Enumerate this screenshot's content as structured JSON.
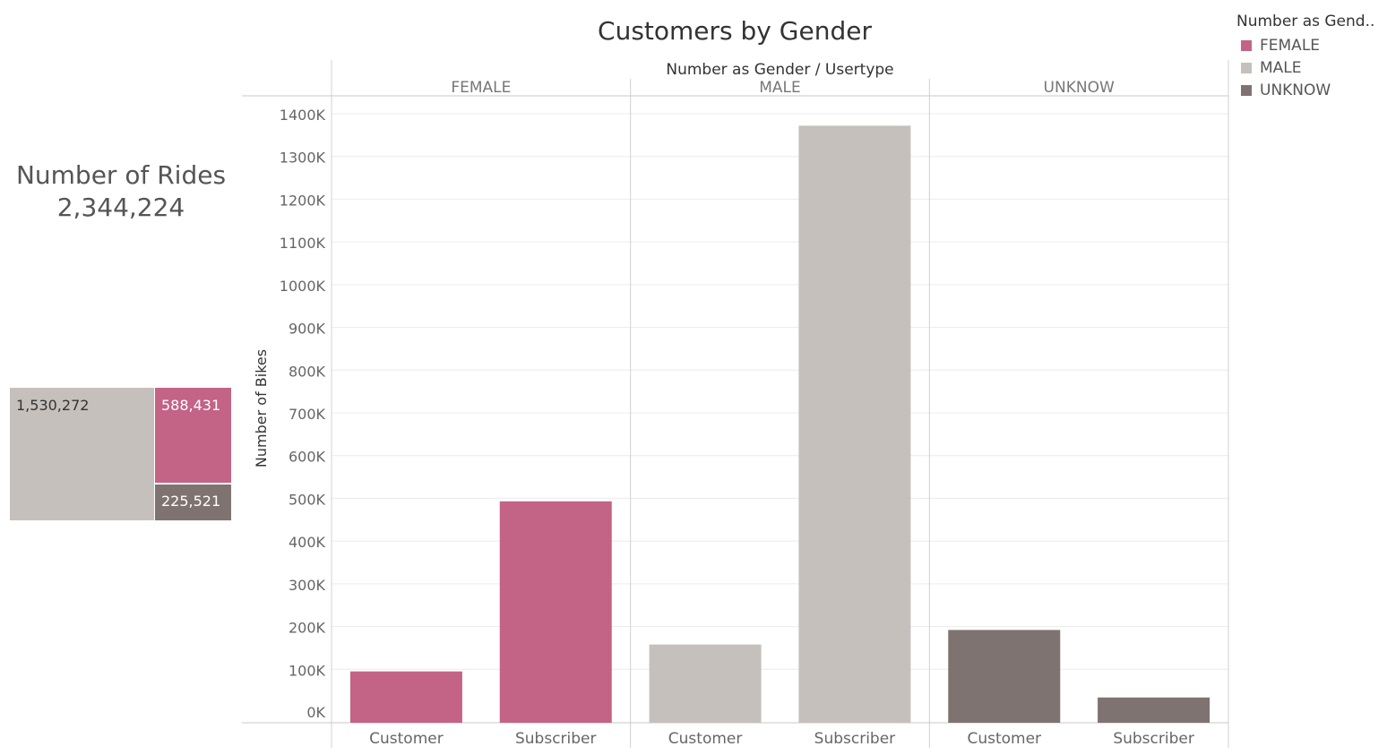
{
  "kpi": {
    "label": "Number of Rides",
    "value": "2,344,224"
  },
  "treemap": {
    "male": "1,530,272",
    "female": "588,431",
    "unknow": "225,521"
  },
  "legend": {
    "title": "Number as Gend..",
    "items": [
      {
        "label": "FEMALE",
        "color": "#c36386"
      },
      {
        "label": "MALE",
        "color": "#c5c0bc"
      },
      {
        "label": "UNKNOW",
        "color": "#7e7370"
      }
    ]
  },
  "chart_data": {
    "type": "bar",
    "title": "Customers by Gender",
    "column_header": "Number as Gender  /  Usertype",
    "ylabel": "Number of Bikes",
    "ylim": [
      0,
      1400000
    ],
    "yticks": [
      0,
      100000,
      200000,
      300000,
      400000,
      500000,
      600000,
      700000,
      800000,
      900000,
      1000000,
      1100000,
      1200000,
      1300000,
      1400000
    ],
    "ytick_labels": [
      "0K",
      "100K",
      "200K",
      "300K",
      "400K",
      "500K",
      "600K",
      "700K",
      "800K",
      "900K",
      "1000K",
      "1100K",
      "1200K",
      "1300K",
      "1400K"
    ],
    "groups": [
      {
        "name": "FEMALE",
        "color": "#c36386",
        "bars": [
          {
            "category": "Customer",
            "value": 95000
          },
          {
            "category": "Subscriber",
            "value": 493000
          }
        ]
      },
      {
        "name": "MALE",
        "color": "#c5c0bc",
        "bars": [
          {
            "category": "Customer",
            "value": 158000
          },
          {
            "category": "Subscriber",
            "value": 1372000
          }
        ]
      },
      {
        "name": "UNKNOW",
        "color": "#7e7370",
        "bars": [
          {
            "category": "Customer",
            "value": 192000
          },
          {
            "category": "Subscriber",
            "value": 34000
          }
        ]
      }
    ],
    "grid": true
  }
}
